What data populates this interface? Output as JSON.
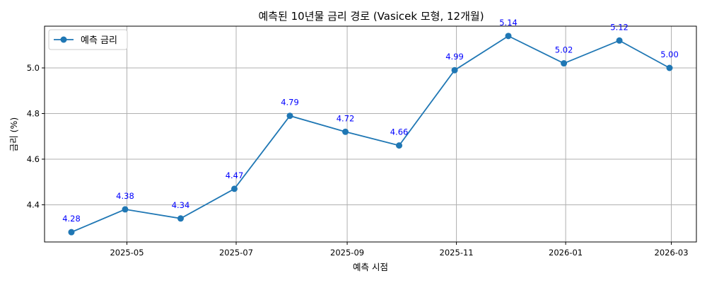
{
  "chart_data": {
    "type": "line",
    "title": "예측된 10년물 금리 경로 (Vasicek 모형, 12개월)",
    "xlabel": "예측 시점",
    "ylabel": "금리 (%)",
    "x": [
      "2025-03-31",
      "2025-04-30",
      "2025-05-31",
      "2025-06-30",
      "2025-07-31",
      "2025-08-31",
      "2025-09-30",
      "2025-10-31",
      "2025-11-30",
      "2025-12-31",
      "2026-01-31",
      "2026-02-28"
    ],
    "series": [
      {
        "name": "예측 금리",
        "values": [
          4.28,
          4.38,
          4.34,
          4.47,
          4.79,
          4.72,
          4.66,
          4.99,
          5.14,
          5.02,
          5.12,
          5.0
        ],
        "labels": [
          "4.28",
          "4.38",
          "4.34",
          "4.47",
          "4.79",
          "4.72",
          "4.66",
          "4.99",
          "5.14",
          "5.02",
          "5.12",
          "5.00"
        ],
        "color": "#1f77b4"
      }
    ],
    "xticks": [
      {
        "date": "2025-05-01",
        "label": "2025-05"
      },
      {
        "date": "2025-07-01",
        "label": "2025-07"
      },
      {
        "date": "2025-09-01",
        "label": "2025-09"
      },
      {
        "date": "2025-11-01",
        "label": "2025-11"
      },
      {
        "date": "2026-01-01",
        "label": "2026-01"
      },
      {
        "date": "2026-03-01",
        "label": "2026-03"
      }
    ],
    "yticks": [
      {
        "value": 4.4,
        "label": "4.4"
      },
      {
        "value": 4.6,
        "label": "4.6"
      },
      {
        "value": 4.8,
        "label": "4.8"
      },
      {
        "value": 5.0,
        "label": "5.0"
      }
    ],
    "xlim": [
      "2025-03-16",
      "2026-03-15"
    ],
    "ylim": [
      4.237,
      5.183
    ],
    "grid": true,
    "legend_position": "top-left",
    "data_label_color": "#0000ff"
  }
}
